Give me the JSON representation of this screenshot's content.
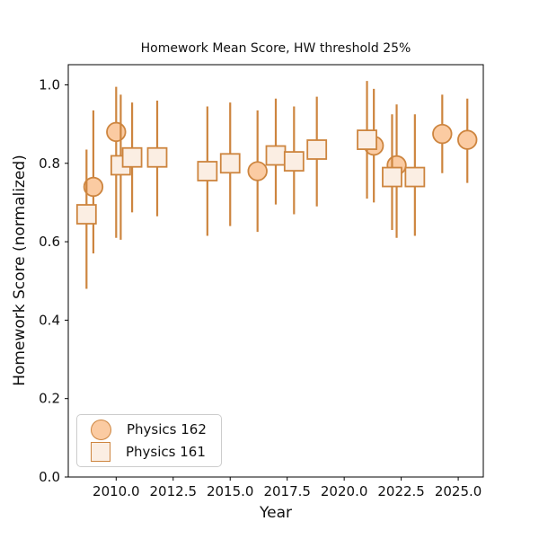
{
  "chart_data": {
    "type": "scatter",
    "title": "Homework Mean Score, HW threshold 25%",
    "xlabel": "Year",
    "ylabel": "Homework Score (normalized)",
    "xlim": [
      2007.9,
      2026.1
    ],
    "ylim": [
      0.0,
      1.0515
    ],
    "grid": false,
    "x_ticks": [
      2010.0,
      2012.5,
      2015.0,
      2017.5,
      2020.0,
      2022.5,
      2025.0
    ],
    "x_tick_labels": [
      "2010.0",
      "2012.5",
      "2015.0",
      "2017.5",
      "2020.0",
      "2022.5",
      "2025.0"
    ],
    "y_ticks": [
      0.0,
      0.2,
      0.4,
      0.6,
      0.8,
      1.0
    ],
    "y_tick_labels": [
      "0.0",
      "0.2",
      "0.4",
      "0.6",
      "0.8",
      "1.0"
    ],
    "legend": {
      "position": "lower left",
      "items": [
        {
          "label": "Physics 162",
          "marker": "circle"
        },
        {
          "label": "Physics 161",
          "marker": "square"
        }
      ]
    },
    "colors": {
      "line": "#cd853f",
      "circle_fill": "#fbcba2",
      "square_fill": "#fbeee3",
      "axis": "#000000",
      "text": "#111111",
      "legend_border": "#cccccc"
    },
    "series": [
      {
        "name": "Physics 162",
        "marker": "circle",
        "points": [
          {
            "x": 2009.0,
            "y": 0.74,
            "lo": 0.57,
            "hi": 0.935
          },
          {
            "x": 2010.0,
            "y": 0.88,
            "lo": 0.61,
            "hi": 0.995
          },
          {
            "x": 2016.2,
            "y": 0.78,
            "lo": 0.625,
            "hi": 0.935
          },
          {
            "x": 2021.3,
            "y": 0.845,
            "lo": 0.7,
            "hi": 0.99
          },
          {
            "x": 2022.3,
            "y": 0.795,
            "lo": 0.61,
            "hi": 0.95
          },
          {
            "x": 2024.3,
            "y": 0.875,
            "lo": 0.775,
            "hi": 0.975
          },
          {
            "x": 2025.4,
            "y": 0.86,
            "lo": 0.75,
            "hi": 0.965
          }
        ]
      },
      {
        "name": "Physics 161",
        "marker": "square",
        "points": [
          {
            "x": 2008.7,
            "y": 0.67,
            "lo": 0.48,
            "hi": 0.835
          },
          {
            "x": 2010.2,
            "y": 0.795,
            "lo": 0.605,
            "hi": 0.975
          },
          {
            "x": 2010.7,
            "y": 0.815,
            "lo": 0.675,
            "hi": 0.955
          },
          {
            "x": 2011.8,
            "y": 0.815,
            "lo": 0.665,
            "hi": 0.96
          },
          {
            "x": 2014.0,
            "y": 0.78,
            "lo": 0.615,
            "hi": 0.945
          },
          {
            "x": 2015.0,
            "y": 0.8,
            "lo": 0.64,
            "hi": 0.955
          },
          {
            "x": 2017.0,
            "y": 0.82,
            "lo": 0.695,
            "hi": 0.965
          },
          {
            "x": 2017.8,
            "y": 0.805,
            "lo": 0.67,
            "hi": 0.945
          },
          {
            "x": 2018.8,
            "y": 0.835,
            "lo": 0.69,
            "hi": 0.97
          },
          {
            "x": 2021.0,
            "y": 0.86,
            "lo": 0.71,
            "hi": 1.01
          },
          {
            "x": 2022.1,
            "y": 0.765,
            "lo": 0.63,
            "hi": 0.925
          },
          {
            "x": 2023.1,
            "y": 0.765,
            "lo": 0.615,
            "hi": 0.925
          }
        ]
      }
    ]
  }
}
